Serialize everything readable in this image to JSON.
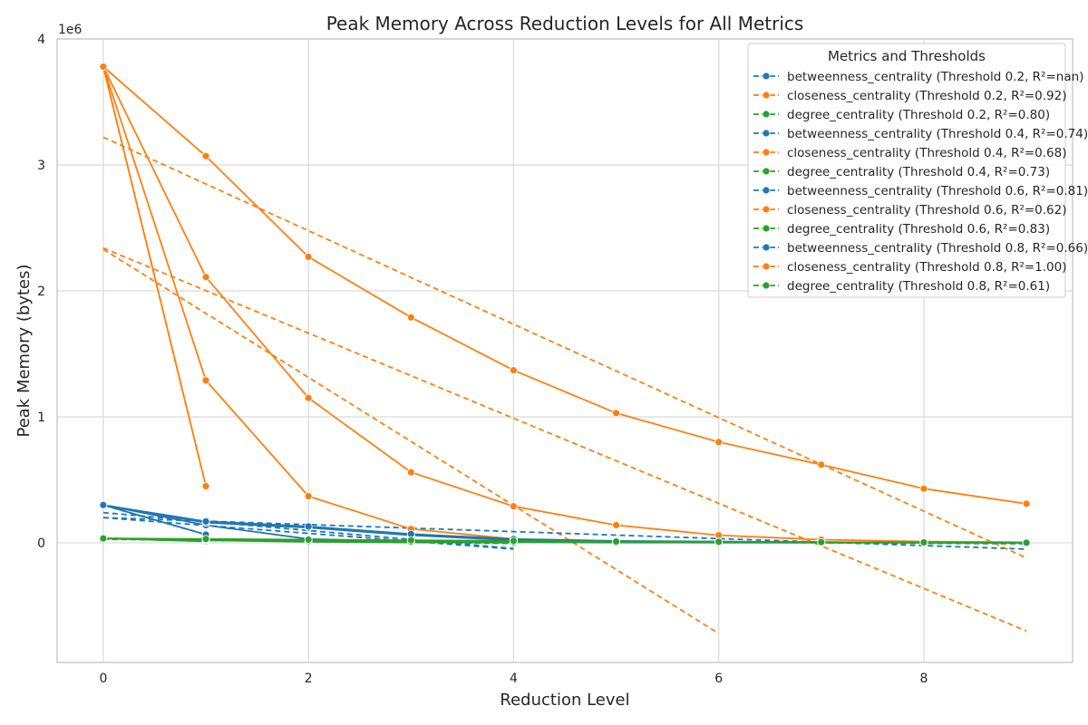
{
  "chart_data": {
    "type": "line",
    "title": "Peak Memory Across Reduction Levels for All Metrics",
    "xlabel": "Reduction Level",
    "ylabel": "Peak Memory (bytes)",
    "y_offset_label": "1e6",
    "xlim": [
      -0.45,
      9.45
    ],
    "ylim": [
      -950000,
      4000000
    ],
    "x_ticks": [
      0,
      2,
      4,
      6,
      8
    ],
    "y_ticks": [
      0,
      1,
      2,
      3,
      4
    ],
    "y_tick_scale": 1000000,
    "grid": true,
    "legend": {
      "title": "Metrics and Thresholds",
      "placement": "top-right"
    },
    "colors": {
      "betweenness_centrality": "#1f77b4",
      "closeness_centrality": "#ff7f0e",
      "degree_centrality": "#2ca02c"
    },
    "series": [
      {
        "name": "betweenness_centrality (Threshold 0.2, R²=nan)",
        "metric": "betweenness_centrality",
        "x": [
          0,
          1
        ],
        "y": [
          300000,
          65000
        ],
        "fit": [
          [
            0,
            300000
          ],
          [
            1,
            65000
          ]
        ]
      },
      {
        "name": "closeness_centrality (Threshold 0.2, R²=0.92)",
        "metric": "closeness_centrality",
        "x": [
          0,
          1
        ],
        "y": [
          3780000,
          450000
        ],
        "fit": [
          [
            0,
            3780000
          ],
          [
            1,
            450000
          ]
        ]
      },
      {
        "name": "degree_centrality (Threshold 0.2, R²=0.80)",
        "metric": "degree_centrality",
        "x": [
          0,
          1
        ],
        "y": [
          35000,
          12000
        ],
        "fit": [
          [
            0,
            35000
          ],
          [
            1,
            12000
          ]
        ]
      },
      {
        "name": "betweenness_centrality (Threshold 0.4, R²=0.74)",
        "metric": "betweenness_centrality",
        "x": [
          0,
          1,
          2,
          3,
          4
        ],
        "y": [
          300000,
          140000,
          30000,
          10000,
          5000
        ],
        "fit": [
          [
            0,
            240000
          ],
          [
            4,
            -45000
          ]
        ]
      },
      {
        "name": "closeness_centrality (Threshold 0.4, R²=0.68)",
        "metric": "closeness_centrality",
        "x": [
          0,
          1,
          2,
          3,
          4
        ],
        "y": [
          3780000,
          1290000,
          370000,
          110000,
          30000
        ],
        "fit": [
          [
            0,
            2330000
          ],
          [
            6,
            -720000
          ]
        ]
      },
      {
        "name": "degree_centrality (Threshold 0.4, R²=0.73)",
        "metric": "degree_centrality",
        "x": [
          0,
          1,
          2,
          3,
          4
        ],
        "y": [
          35000,
          20000,
          8000,
          3000,
          1000
        ],
        "fit": [
          [
            0,
            28000
          ],
          [
            4,
            -5000
          ]
        ]
      },
      {
        "name": "betweenness_centrality (Threshold 0.6, R²=0.81)",
        "metric": "betweenness_centrality",
        "x": [
          0,
          1,
          2,
          3,
          4,
          5,
          6
        ],
        "y": [
          300000,
          160000,
          120000,
          60000,
          20000,
          8000,
          3000
        ],
        "fit": [
          [
            0,
            200000
          ],
          [
            4,
            -50000
          ]
        ]
      },
      {
        "name": "closeness_centrality (Threshold 0.6, R²=0.62)",
        "metric": "closeness_centrality",
        "x": [
          0,
          1,
          2,
          3,
          4,
          5,
          6,
          7,
          8,
          9
        ],
        "y": [
          3780000,
          2110000,
          1150000,
          560000,
          290000,
          140000,
          60000,
          25000,
          10000,
          4000
        ],
        "fit": [
          [
            0,
            2340000
          ],
          [
            9,
            -700000
          ]
        ]
      },
      {
        "name": "degree_centrality (Threshold 0.6, R²=0.83)",
        "metric": "degree_centrality",
        "x": [
          0,
          1,
          2,
          3,
          4,
          5,
          6,
          7,
          8,
          9
        ],
        "y": [
          35000,
          25000,
          15000,
          8000,
          4000,
          2000,
          1000,
          500,
          300,
          100
        ],
        "fit": [
          [
            0,
            30000
          ],
          [
            9,
            -8000
          ]
        ]
      },
      {
        "name": "betweenness_centrality (Threshold 0.8, R²=0.66)",
        "metric": "betweenness_centrality",
        "x": [
          0,
          1,
          2,
          3,
          4,
          5,
          6,
          7,
          8,
          9
        ],
        "y": [
          300000,
          170000,
          130000,
          70000,
          30000,
          15000,
          10000,
          5000,
          2000,
          1000
        ],
        "fit": [
          [
            0,
            200000
          ],
          [
            9,
            -50000
          ]
        ]
      },
      {
        "name": "closeness_centrality (Threshold 0.8, R²=1.00)",
        "metric": "closeness_centrality",
        "x": [
          0,
          1,
          2,
          3,
          4,
          5,
          6,
          7,
          8,
          9
        ],
        "y": [
          3780000,
          3070000,
          2270000,
          1790000,
          1370000,
          1030000,
          800000,
          620000,
          430000,
          310000
        ],
        "fit": [
          [
            0,
            3220000
          ],
          [
            9,
            -120000
          ]
        ]
      },
      {
        "name": "degree_centrality (Threshold 0.8, R²=0.61)",
        "metric": "degree_centrality",
        "x": [
          0,
          1,
          2,
          3,
          4,
          5,
          6,
          7,
          8,
          9
        ],
        "y": [
          35000,
          30000,
          25000,
          20000,
          15000,
          10000,
          8000,
          5000,
          3000,
          1000
        ],
        "fit": [
          [
            0,
            30000
          ],
          [
            9,
            -6000
          ]
        ]
      }
    ]
  }
}
